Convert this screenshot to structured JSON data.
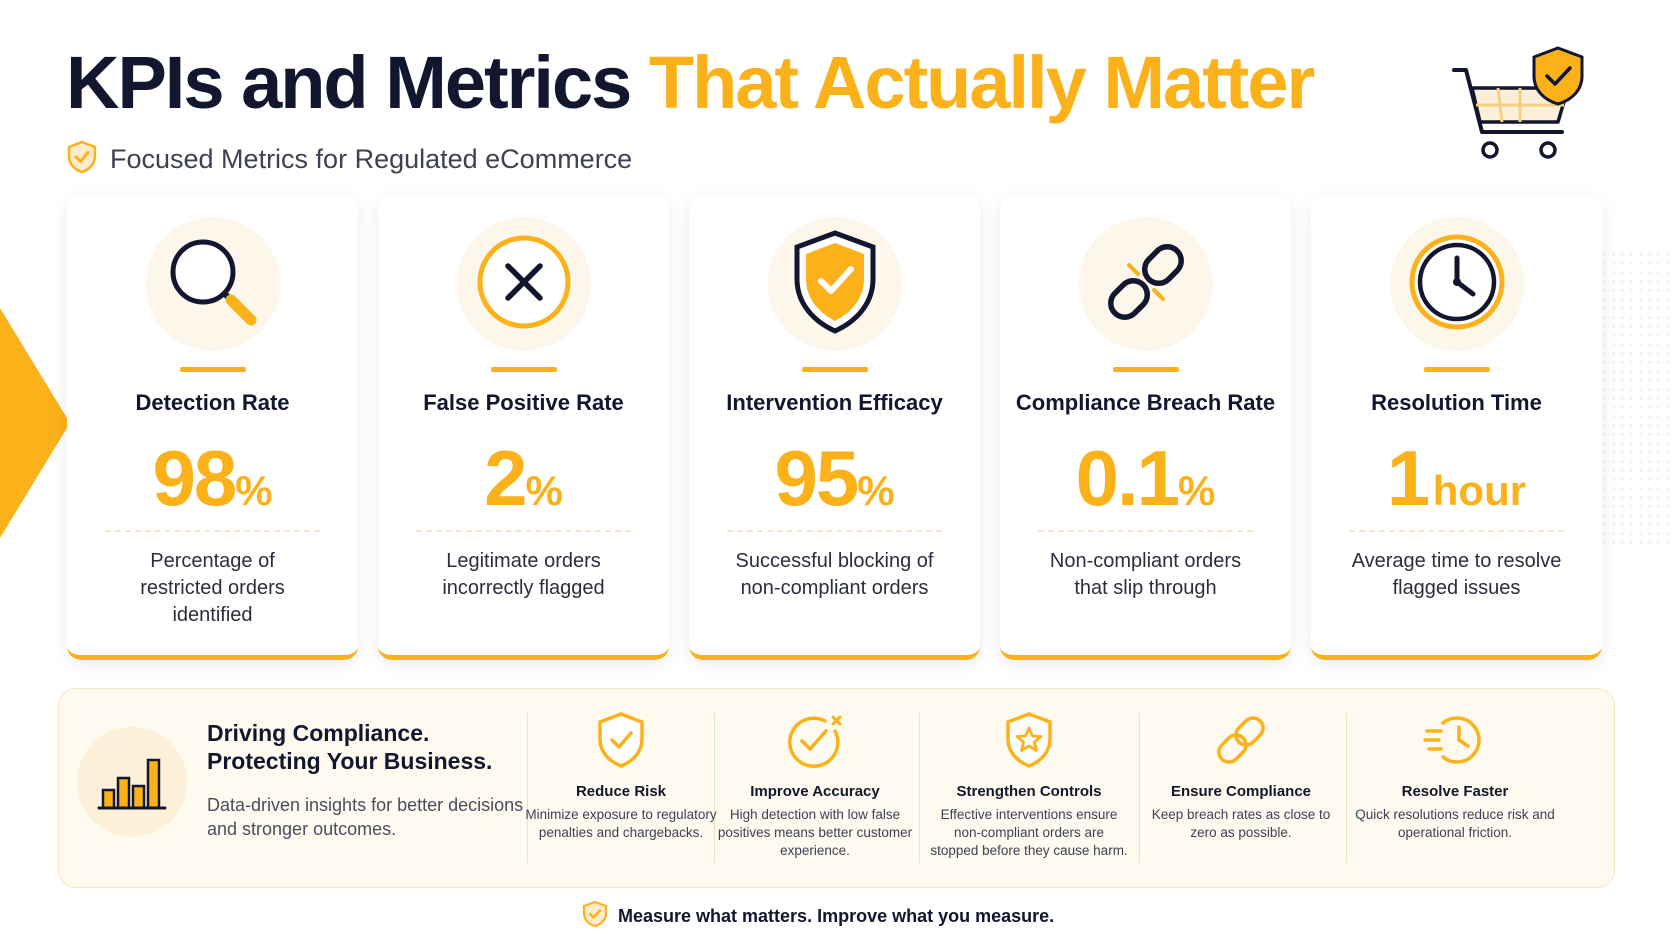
{
  "header": {
    "title_dark": "KPIs and Metrics",
    "title_accent": "That Actually Matter",
    "subtitle": "Focused Metrics for Regulated eCommerce"
  },
  "colors": {
    "accent": "#fbb11a",
    "dark": "#12162e",
    "panel": "#fffaf0"
  },
  "metrics": [
    {
      "icon": "magnifier-icon",
      "title": "Detection Rate",
      "value": "98",
      "unit": "%",
      "description": "Percentage of restricted orders identified"
    },
    {
      "icon": "x-circle-icon",
      "title": "False Positive Rate",
      "value": "2",
      "unit": "%",
      "description": "Legitimate orders incorrectly flagged"
    },
    {
      "icon": "shield-check-icon",
      "title": "Intervention Efficacy",
      "value": "95",
      "unit": "%",
      "description": "Successful blocking of non-compliant orders"
    },
    {
      "icon": "broken-link-icon",
      "title": "Compliance Breach Rate",
      "value": "0.1",
      "unit": "%",
      "description": "Non-compliant orders that slip through"
    },
    {
      "icon": "clock-icon",
      "title": "Resolution Time",
      "value": "1",
      "unit": "hour",
      "description": "Average time to resolve flagged issues"
    }
  ],
  "panel": {
    "headline_1": "Driving Compliance.",
    "headline_2": "Protecting Your Business.",
    "subtext": "Data-driven insights for better decisions and stronger outcomes.",
    "benefits": [
      {
        "icon": "shield-check-icon",
        "title": "Reduce Risk",
        "description": "Minimize exposure to regulatory penalties and chargebacks."
      },
      {
        "icon": "check-circle-icon",
        "title": "Improve Accuracy",
        "description": "High detection with low false positives means better customer experience."
      },
      {
        "icon": "shield-star-icon",
        "title": "Strengthen Controls",
        "description": "Effective interventions ensure non-compliant orders are stopped before they cause harm."
      },
      {
        "icon": "link-icon",
        "title": "Ensure Compliance",
        "description": "Keep breach rates as close to zero as possible."
      },
      {
        "icon": "fast-clock-icon",
        "title": "Resolve Faster",
        "description": "Quick resolutions reduce risk and operational friction."
      }
    ]
  },
  "footer": {
    "text": "Measure what matters. Improve what you measure."
  }
}
